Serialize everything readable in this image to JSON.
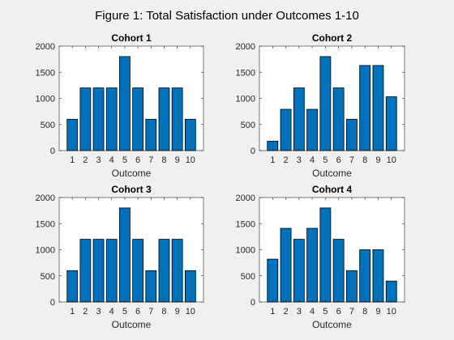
{
  "figure_title": "Figure 1: Total Satisfaction under Outcomes 1-10",
  "colors": {
    "bar": "#0072bd",
    "background": "#f0f0f0",
    "axes": "#ffffff"
  },
  "chart_data": [
    {
      "type": "bar",
      "title": "Cohort 1",
      "xlabel": "Outcome",
      "ylabel": "",
      "categories": [
        "1",
        "2",
        "3",
        "4",
        "5",
        "6",
        "7",
        "8",
        "9",
        "10"
      ],
      "values": [
        600,
        1200,
        1200,
        1200,
        1800,
        1200,
        600,
        1200,
        1200,
        600
      ],
      "ylim": [
        0,
        2000
      ],
      "yticks": [
        0,
        500,
        1000,
        1500,
        2000
      ],
      "grid": false
    },
    {
      "type": "bar",
      "title": "Cohort 2",
      "xlabel": "Outcome",
      "ylabel": "",
      "categories": [
        "1",
        "2",
        "3",
        "4",
        "5",
        "6",
        "7",
        "8",
        "9",
        "10"
      ],
      "values": [
        180,
        790,
        1200,
        790,
        1800,
        1200,
        600,
        1630,
        1630,
        1030
      ],
      "ylim": [
        0,
        2000
      ],
      "yticks": [
        0,
        500,
        1000,
        1500,
        2000
      ],
      "grid": false
    },
    {
      "type": "bar",
      "title": "Cohort 3",
      "xlabel": "Outcome",
      "ylabel": "",
      "categories": [
        "1",
        "2",
        "3",
        "4",
        "5",
        "6",
        "7",
        "8",
        "9",
        "10"
      ],
      "values": [
        600,
        1200,
        1200,
        1200,
        1800,
        1200,
        600,
        1200,
        1200,
        600
      ],
      "ylim": [
        0,
        2000
      ],
      "yticks": [
        0,
        500,
        1000,
        1500,
        2000
      ],
      "grid": false
    },
    {
      "type": "bar",
      "title": "Cohort 4",
      "xlabel": "Outcome",
      "ylabel": "",
      "categories": [
        "1",
        "2",
        "3",
        "4",
        "5",
        "6",
        "7",
        "8",
        "9",
        "10"
      ],
      "values": [
        820,
        1410,
        1200,
        1410,
        1800,
        1200,
        600,
        1000,
        1000,
        400
      ],
      "ylim": [
        0,
        2000
      ],
      "yticks": [
        0,
        500,
        1000,
        1500,
        2000
      ],
      "grid": false
    }
  ]
}
